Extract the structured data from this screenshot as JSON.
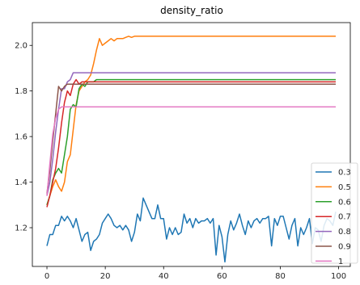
{
  "chart_data": {
    "type": "line",
    "title": "density_ratio",
    "xlabel": "",
    "ylabel": "",
    "xlim": [
      -5,
      104
    ],
    "ylim": [
      1.03,
      2.1
    ],
    "x_ticks": [
      0,
      20,
      40,
      60,
      80,
      100
    ],
    "y_ticks": [
      1.2,
      1.4,
      1.6,
      1.8,
      2.0
    ],
    "x_tick_labels": [
      "0",
      "20",
      "40",
      "60",
      "80",
      "100"
    ],
    "y_tick_labels": [
      "1.2",
      "1.4",
      "1.6",
      "1.8",
      "2.0"
    ],
    "grid": false,
    "legend_position": "bottom-right",
    "series": [
      {
        "name": "0.3",
        "color": "#1f77b4",
        "x": [
          0,
          1,
          2,
          3,
          4,
          5,
          6,
          7,
          8,
          9,
          10,
          11,
          12,
          13,
          14,
          15,
          16,
          17,
          18,
          19,
          20,
          21,
          22,
          23,
          24,
          25,
          26,
          27,
          28,
          29,
          30,
          31,
          32,
          33,
          34,
          35,
          36,
          37,
          38,
          39,
          40,
          41,
          42,
          43,
          44,
          45,
          46,
          47,
          48,
          49,
          50,
          51,
          52,
          53,
          54,
          55,
          56,
          57,
          58,
          59,
          60,
          61,
          62,
          63,
          64,
          65,
          66,
          67,
          68,
          69,
          70,
          71,
          72,
          73,
          74,
          75,
          76,
          77,
          78,
          79,
          80,
          81,
          82,
          83,
          84,
          85,
          86,
          87,
          88,
          89,
          90,
          91,
          92,
          93,
          94,
          95,
          96,
          97,
          98,
          99
        ],
        "y": [
          1.12,
          1.17,
          1.17,
          1.21,
          1.21,
          1.25,
          1.23,
          1.25,
          1.23,
          1.2,
          1.24,
          1.19,
          1.14,
          1.17,
          1.18,
          1.1,
          1.14,
          1.15,
          1.17,
          1.22,
          1.24,
          1.26,
          1.24,
          1.21,
          1.2,
          1.21,
          1.19,
          1.21,
          1.19,
          1.14,
          1.18,
          1.26,
          1.23,
          1.33,
          1.3,
          1.27,
          1.24,
          1.24,
          1.3,
          1.24,
          1.24,
          1.15,
          1.2,
          1.17,
          1.2,
          1.17,
          1.18,
          1.26,
          1.22,
          1.24,
          1.2,
          1.24,
          1.22,
          1.23,
          1.23,
          1.24,
          1.22,
          1.24,
          1.08,
          1.21,
          1.16,
          1.05,
          1.17,
          1.23,
          1.19,
          1.22,
          1.26,
          1.21,
          1.17,
          1.23,
          1.2,
          1.23,
          1.24,
          1.22,
          1.24,
          1.24,
          1.25,
          1.12,
          1.24,
          1.21,
          1.25,
          1.25,
          1.2,
          1.15,
          1.21,
          1.24,
          1.12,
          1.2,
          1.17,
          1.2,
          1.24,
          1.13,
          1.2,
          1.19,
          1.14,
          1.21,
          1.24,
          1.23,
          1.21,
          1.27
        ]
      },
      {
        "name": "0.5",
        "color": "#ff7f0e",
        "x": [
          0,
          1,
          2,
          3,
          4,
          5,
          6,
          7,
          8,
          9,
          10,
          11,
          12,
          13,
          14,
          15,
          16,
          17,
          18,
          19,
          20,
          21,
          22,
          23,
          24,
          25,
          26,
          27,
          28,
          29,
          30,
          31,
          32,
          35,
          40,
          50,
          60,
          70,
          80,
          90,
          99
        ],
        "y": [
          1.3,
          1.34,
          1.38,
          1.41,
          1.38,
          1.36,
          1.4,
          1.49,
          1.52,
          1.63,
          1.74,
          1.8,
          1.82,
          1.84,
          1.85,
          1.87,
          1.92,
          1.98,
          2.03,
          2.0,
          2.01,
          2.02,
          2.03,
          2.02,
          2.03,
          2.03,
          2.03,
          2.035,
          2.04,
          2.035,
          2.04,
          2.04,
          2.04,
          2.04,
          2.04,
          2.04,
          2.04,
          2.04,
          2.04,
          2.04,
          2.04
        ]
      },
      {
        "name": "0.6",
        "color": "#2ca02c",
        "x": [
          0,
          1,
          2,
          3,
          4,
          5,
          6,
          7,
          8,
          9,
          10,
          11,
          12,
          13,
          14,
          15,
          16,
          17,
          18,
          20,
          30,
          40,
          50,
          60,
          70,
          80,
          90,
          99
        ],
        "y": [
          1.3,
          1.34,
          1.41,
          1.44,
          1.46,
          1.44,
          1.52,
          1.6,
          1.72,
          1.74,
          1.73,
          1.81,
          1.83,
          1.82,
          1.84,
          1.84,
          1.84,
          1.85,
          1.85,
          1.85,
          1.85,
          1.85,
          1.85,
          1.85,
          1.85,
          1.85,
          1.85,
          1.85
        ]
      },
      {
        "name": "0.7",
        "color": "#d62728",
        "x": [
          0,
          1,
          2,
          3,
          4,
          5,
          6,
          7,
          8,
          9,
          10,
          11,
          12,
          13,
          14,
          15,
          20,
          30,
          40,
          50,
          60,
          70,
          80,
          90,
          99
        ],
        "y": [
          1.29,
          1.34,
          1.4,
          1.46,
          1.55,
          1.66,
          1.75,
          1.8,
          1.78,
          1.83,
          1.85,
          1.83,
          1.84,
          1.84,
          1.84,
          1.84,
          1.84,
          1.84,
          1.84,
          1.84,
          1.84,
          1.84,
          1.84,
          1.84,
          1.84
        ]
      },
      {
        "name": "0.8",
        "color": "#9467bd",
        "x": [
          0,
          1,
          2,
          3,
          4,
          5,
          6,
          7,
          8,
          9,
          10,
          15,
          20,
          30,
          40,
          50,
          60,
          70,
          80,
          90,
          99
        ],
        "y": [
          1.34,
          1.4,
          1.5,
          1.62,
          1.72,
          1.81,
          1.81,
          1.84,
          1.85,
          1.88,
          1.88,
          1.88,
          1.88,
          1.88,
          1.88,
          1.88,
          1.88,
          1.88,
          1.88,
          1.88,
          1.88
        ]
      },
      {
        "name": "0.9",
        "color": "#8c564b",
        "x": [
          0,
          1,
          2,
          3,
          4,
          5,
          6,
          7,
          8,
          9,
          10,
          15,
          20,
          30,
          40,
          50,
          60,
          70,
          80,
          90,
          99
        ],
        "y": [
          1.35,
          1.45,
          1.58,
          1.7,
          1.82,
          1.8,
          1.82,
          1.83,
          1.83,
          1.83,
          1.83,
          1.83,
          1.83,
          1.83,
          1.83,
          1.83,
          1.83,
          1.83,
          1.83,
          1.83,
          1.83
        ]
      },
      {
        "name": "1",
        "color": "#e377c2",
        "x": [
          0,
          1,
          2,
          3,
          4,
          5,
          6,
          7,
          8,
          10,
          15,
          20,
          30,
          40,
          50,
          60,
          70,
          80,
          90,
          99
        ],
        "y": [
          1.34,
          1.48,
          1.61,
          1.68,
          1.72,
          1.73,
          1.73,
          1.73,
          1.73,
          1.73,
          1.73,
          1.73,
          1.73,
          1.73,
          1.73,
          1.73,
          1.73,
          1.73,
          1.73,
          1.73
        ]
      }
    ]
  }
}
